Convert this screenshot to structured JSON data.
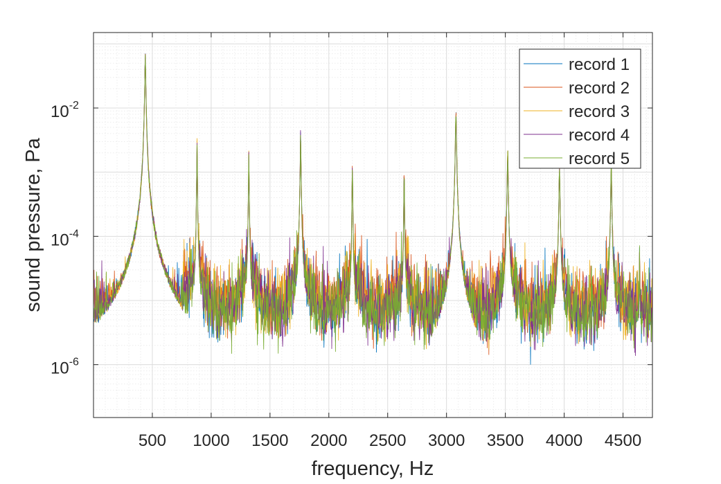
{
  "chart_data": {
    "type": "line",
    "title": "",
    "xlabel": "frequency, Hz",
    "ylabel": "sound pressure, Pa",
    "xlim": [
      0,
      4750
    ],
    "ylim": [
      1.5e-07,
      0.15
    ],
    "yscale": "log",
    "grid": true,
    "minor_grid": true,
    "legend_position": "top-right",
    "x_ticks": [
      500,
      1000,
      1500,
      2000,
      2500,
      3000,
      3500,
      4000,
      4500
    ],
    "x_tick_labels": [
      "500",
      "1000",
      "1500",
      "2000",
      "2500",
      "3000",
      "3500",
      "4000",
      "4500"
    ],
    "y_ticks": [
      1e-06,
      0.0001,
      0.01
    ],
    "y_tick_labels": [
      {
        "base": "10",
        "exp": "-6"
      },
      {
        "base": "10",
        "exp": "-4"
      },
      {
        "base": "10",
        "exp": "-2"
      }
    ],
    "peaks": [
      {
        "f": 440,
        "amp": 0.065,
        "width": 9
      },
      {
        "f": 880,
        "amp": 0.003,
        "width": 5
      },
      {
        "f": 1320,
        "amp": 0.0022,
        "width": 5
      },
      {
        "f": 1760,
        "amp": 0.0045,
        "width": 6
      },
      {
        "f": 2200,
        "amp": 0.0015,
        "width": 5
      },
      {
        "f": 2640,
        "amp": 0.0012,
        "width": 5
      },
      {
        "f": 3080,
        "amp": 0.0085,
        "width": 9
      },
      {
        "f": 3520,
        "amp": 0.0022,
        "width": 8
      },
      {
        "f": 3960,
        "amp": 0.0013,
        "width": 8
      },
      {
        "f": 4400,
        "amp": 0.0013,
        "width": 8
      },
      {
        "f": 4640,
        "amp": 7e-05,
        "width": 4
      }
    ],
    "series": [
      {
        "name": "record 1",
        "color": "#0072bd",
        "seed": 11,
        "gain": 0.95
      },
      {
        "name": "record 2",
        "color": "#d95319",
        "seed": 23,
        "gain": 1.25
      },
      {
        "name": "record 3",
        "color": "#edb120",
        "seed": 37,
        "gain": 1.05
      },
      {
        "name": "record 4",
        "color": "#7e2f8e",
        "seed": 51,
        "gain": 0.9
      },
      {
        "name": "record 5",
        "color": "#77ac30",
        "seed": 67,
        "gain": 0.85
      }
    ]
  }
}
